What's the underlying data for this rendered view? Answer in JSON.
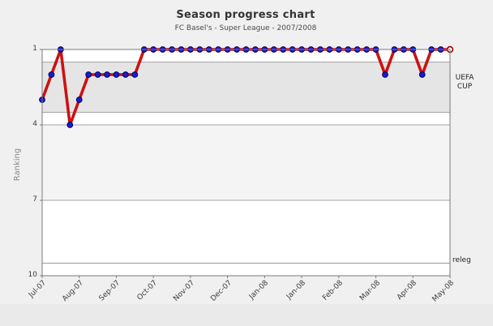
{
  "chart": {
    "title": "Season progress chart",
    "subtitle": "FC Basel's - Super League - 2007/2008",
    "ylabel": "Ranking"
  },
  "right_labels": {
    "uefa_line1": "UEFA",
    "uefa_line2": "CUP",
    "releg": "releg"
  },
  "chart_data": {
    "type": "line",
    "title": "Season progress chart",
    "subtitle": "FC Basel's - Super League - 2007/2008",
    "xlabel": "",
    "ylabel": "Ranking",
    "y_axis_inverted": true,
    "ylim": [
      1,
      10
    ],
    "yticks": [
      1,
      4,
      7,
      10
    ],
    "x_tick_labels": [
      "Jul-07",
      "Aug-07",
      "Sep-07",
      "Oct-07",
      "Nov-07",
      "Dec-07",
      "Jan-08",
      "Jan-08",
      "Feb-08",
      "Mar-08",
      "Apr-08",
      "May-08"
    ],
    "x_tick_positions": [
      1,
      5,
      9,
      13,
      17,
      21,
      25,
      29,
      33,
      37,
      41,
      45
    ],
    "values": [
      3,
      2,
      1,
      4,
      3,
      2,
      2,
      2,
      2,
      2,
      2,
      1,
      1,
      1,
      1,
      1,
      1,
      1,
      1,
      1,
      1,
      1,
      1,
      1,
      1,
      1,
      1,
      1,
      1,
      1,
      1,
      1,
      1,
      1,
      1,
      1,
      1,
      2,
      1,
      1,
      1,
      2,
      1,
      1,
      1
    ],
    "zones": [
      {
        "label": "UEFA CUP",
        "from": 1.5,
        "to": 3.5,
        "color": "#e5e5e5"
      },
      {
        "label": "",
        "from": 4,
        "to": 7,
        "color": "#f4f4f4"
      }
    ],
    "relegation_line": 9.5,
    "annotations": [
      {
        "text": "UEFA CUP",
        "side": "right",
        "y": 2.5
      },
      {
        "text": "releg",
        "side": "right",
        "y": 9.5
      }
    ],
    "grid": "horizontal",
    "legend": "none",
    "colors": {
      "line": "#cc1111",
      "marker": "#1c1ccc",
      "marker_edge": "#000066",
      "last_marker_fill": "#ffffff",
      "last_marker_edge": "#990000",
      "band_uefa": "#e5e5e5",
      "band_mid": "#f4f4f4",
      "page_bg": "#f0f0f0",
      "plot_bg": "#ffffff"
    }
  }
}
